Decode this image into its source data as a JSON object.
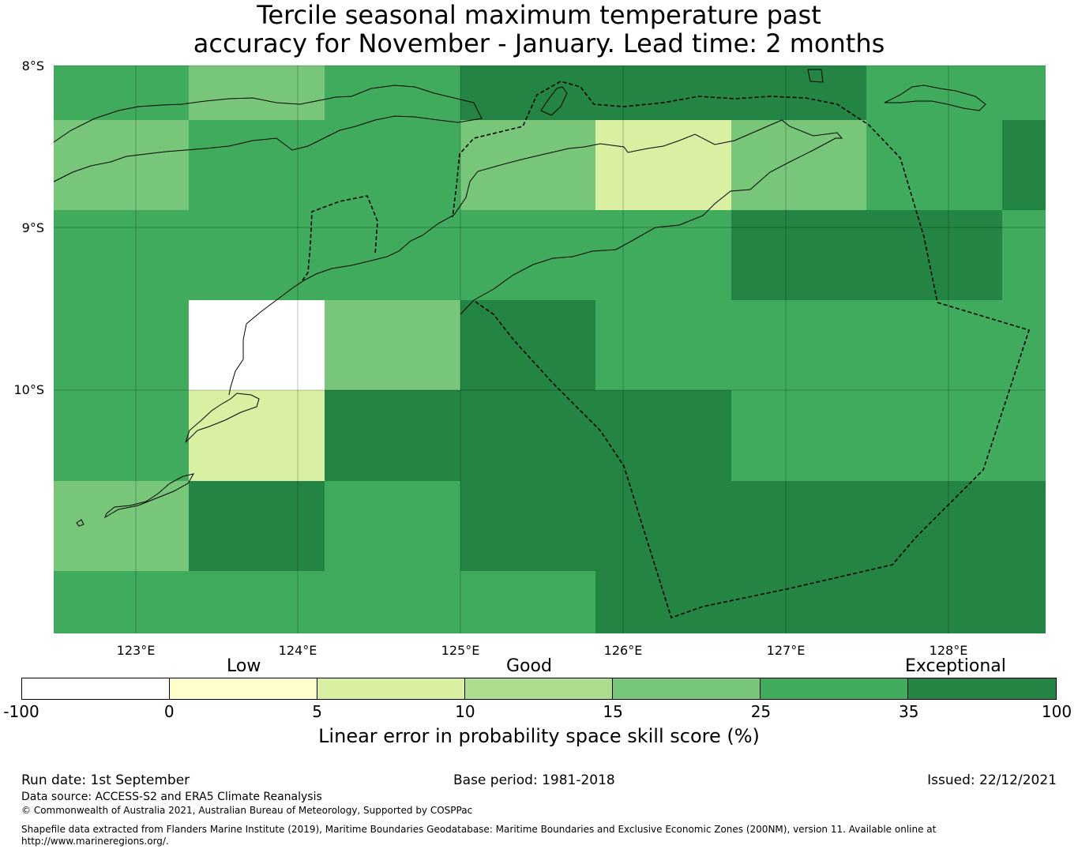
{
  "title": {
    "line1": "Tercile seasonal maximum temperature past",
    "line2": "accuracy for November - January. Lead time: 2 months"
  },
  "map": {
    "lat_labels": [
      "8°S",
      "9°S",
      "10°S"
    ],
    "lon_labels": [
      "123°E",
      "124°E",
      "125°E",
      "126°E",
      "127°E",
      "128°E"
    ],
    "category_colors": {
      "c0": "#ffffff",
      "c5": "#d9f0a3",
      "c15": "#78c679",
      "c25": "#41ab5d",
      "c35": "#238443"
    },
    "grid_rows": [
      [
        "c25",
        "c15",
        "c25",
        "c35",
        "c35",
        "c35",
        "c25",
        "c25"
      ],
      [
        "c15",
        "c25",
        "c25",
        "c15",
        "c5",
        "c15",
        "c25",
        "c35"
      ],
      [
        "c25",
        "c25",
        "c25",
        "c25",
        "c25",
        "c35",
        "c35",
        "c25"
      ],
      [
        "c25",
        "c0",
        "c15",
        "c35",
        "c25",
        "c25",
        "c25",
        "c25"
      ],
      [
        "c25",
        "c5",
        "c35",
        "c35",
        "c35",
        "c25",
        "c25",
        "c25"
      ],
      [
        "c15",
        "c35",
        "c25",
        "c35",
        "c35",
        "c35",
        "c35",
        "c35"
      ],
      [
        "c25",
        "c25",
        "c25",
        "c25",
        "c35",
        "c35",
        "c35",
        "c35"
      ]
    ]
  },
  "legend": {
    "category_labels": [
      "Low",
      "Good",
      "Exceptional"
    ],
    "segments": [
      {
        "from": -100,
        "to": 0,
        "color": "#ffffff"
      },
      {
        "from": 0,
        "to": 5,
        "color": "#ffffcc"
      },
      {
        "from": 5,
        "to": 10,
        "color": "#d9f0a3"
      },
      {
        "from": 10,
        "to": 15,
        "color": "#addd8e"
      },
      {
        "from": 15,
        "to": 25,
        "color": "#78c679"
      },
      {
        "from": 25,
        "to": 35,
        "color": "#41ab5d"
      },
      {
        "from": 35,
        "to": 100,
        "color": "#238443"
      }
    ],
    "ticks": [
      "-100",
      "0",
      "5",
      "10",
      "15",
      "25",
      "35",
      "100"
    ],
    "axis_label": "Linear error in probability space skill score (%)"
  },
  "footer": {
    "run_date": "Run date: 1st September",
    "base_period": "Base period: 1981-2018",
    "issued": "Issued: 22/12/2021",
    "data_source": "Data source: ACCESS-S2 and ERA5 Climate Reanalysis",
    "copyright": "© Commonwealth of Australia 2021, Australian Bureau of Meteorology, Supported by COSPPac",
    "shapefile_line1": "Shapefile data extracted from Flanders Marine Institute (2019), Maritime Boundaries Geodatabase: Maritime Boundaries and Exclusive Economic Zones (200NM), version 11. Available online at",
    "shapefile_line2": "http://www.marineregions.org/."
  }
}
